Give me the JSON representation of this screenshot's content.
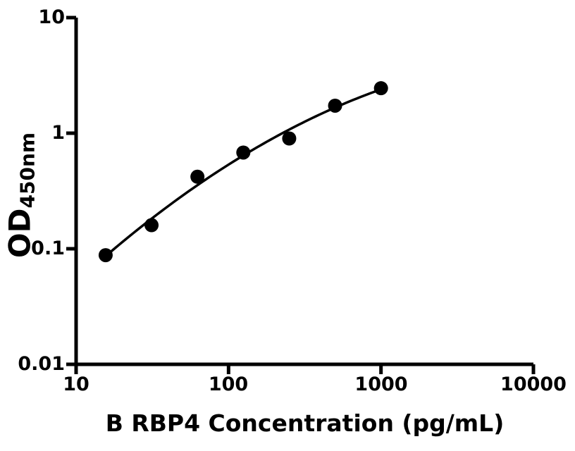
{
  "figure": {
    "background_color": "#ffffff",
    "axis_color": "#000000",
    "xlabel": "B RBP4 Concentration (pg/mL)",
    "ylabel_base": "OD",
    "ylabel_sub": "450nm"
  },
  "chart_data": {
    "type": "scatter",
    "title": "",
    "xlabel": "B RBP4 Concentration (pg/mL)",
    "ylabel": "OD450nm",
    "x_scale": "log",
    "y_scale": "log",
    "xlim": [
      10,
      10000
    ],
    "ylim": [
      0.01,
      10
    ],
    "grid": false,
    "legend": false,
    "x_ticks": [
      10,
      100,
      1000,
      10000
    ],
    "x_tick_labels": [
      "10",
      "100",
      "1000",
      "10000"
    ],
    "y_ticks": [
      10,
      1,
      0.1,
      0.01
    ],
    "y_tick_labels": [
      "10",
      "1",
      "0.1",
      "0.01"
    ],
    "series": [
      {
        "name": "standard curve points",
        "marker": "filled-circle",
        "marker_color": "#000000",
        "x": [
          15.625,
          31.25,
          62.5,
          125,
          250,
          500,
          1000
        ],
        "y": [
          0.088,
          0.16,
          0.42,
          0.68,
          0.9,
          1.73,
          2.45
        ]
      }
    ],
    "curve": {
      "type": "smooth-fit",
      "description": "smooth fitted curve through the data points (log-log fit), drawn from first to last point",
      "color": "#000000"
    }
  }
}
